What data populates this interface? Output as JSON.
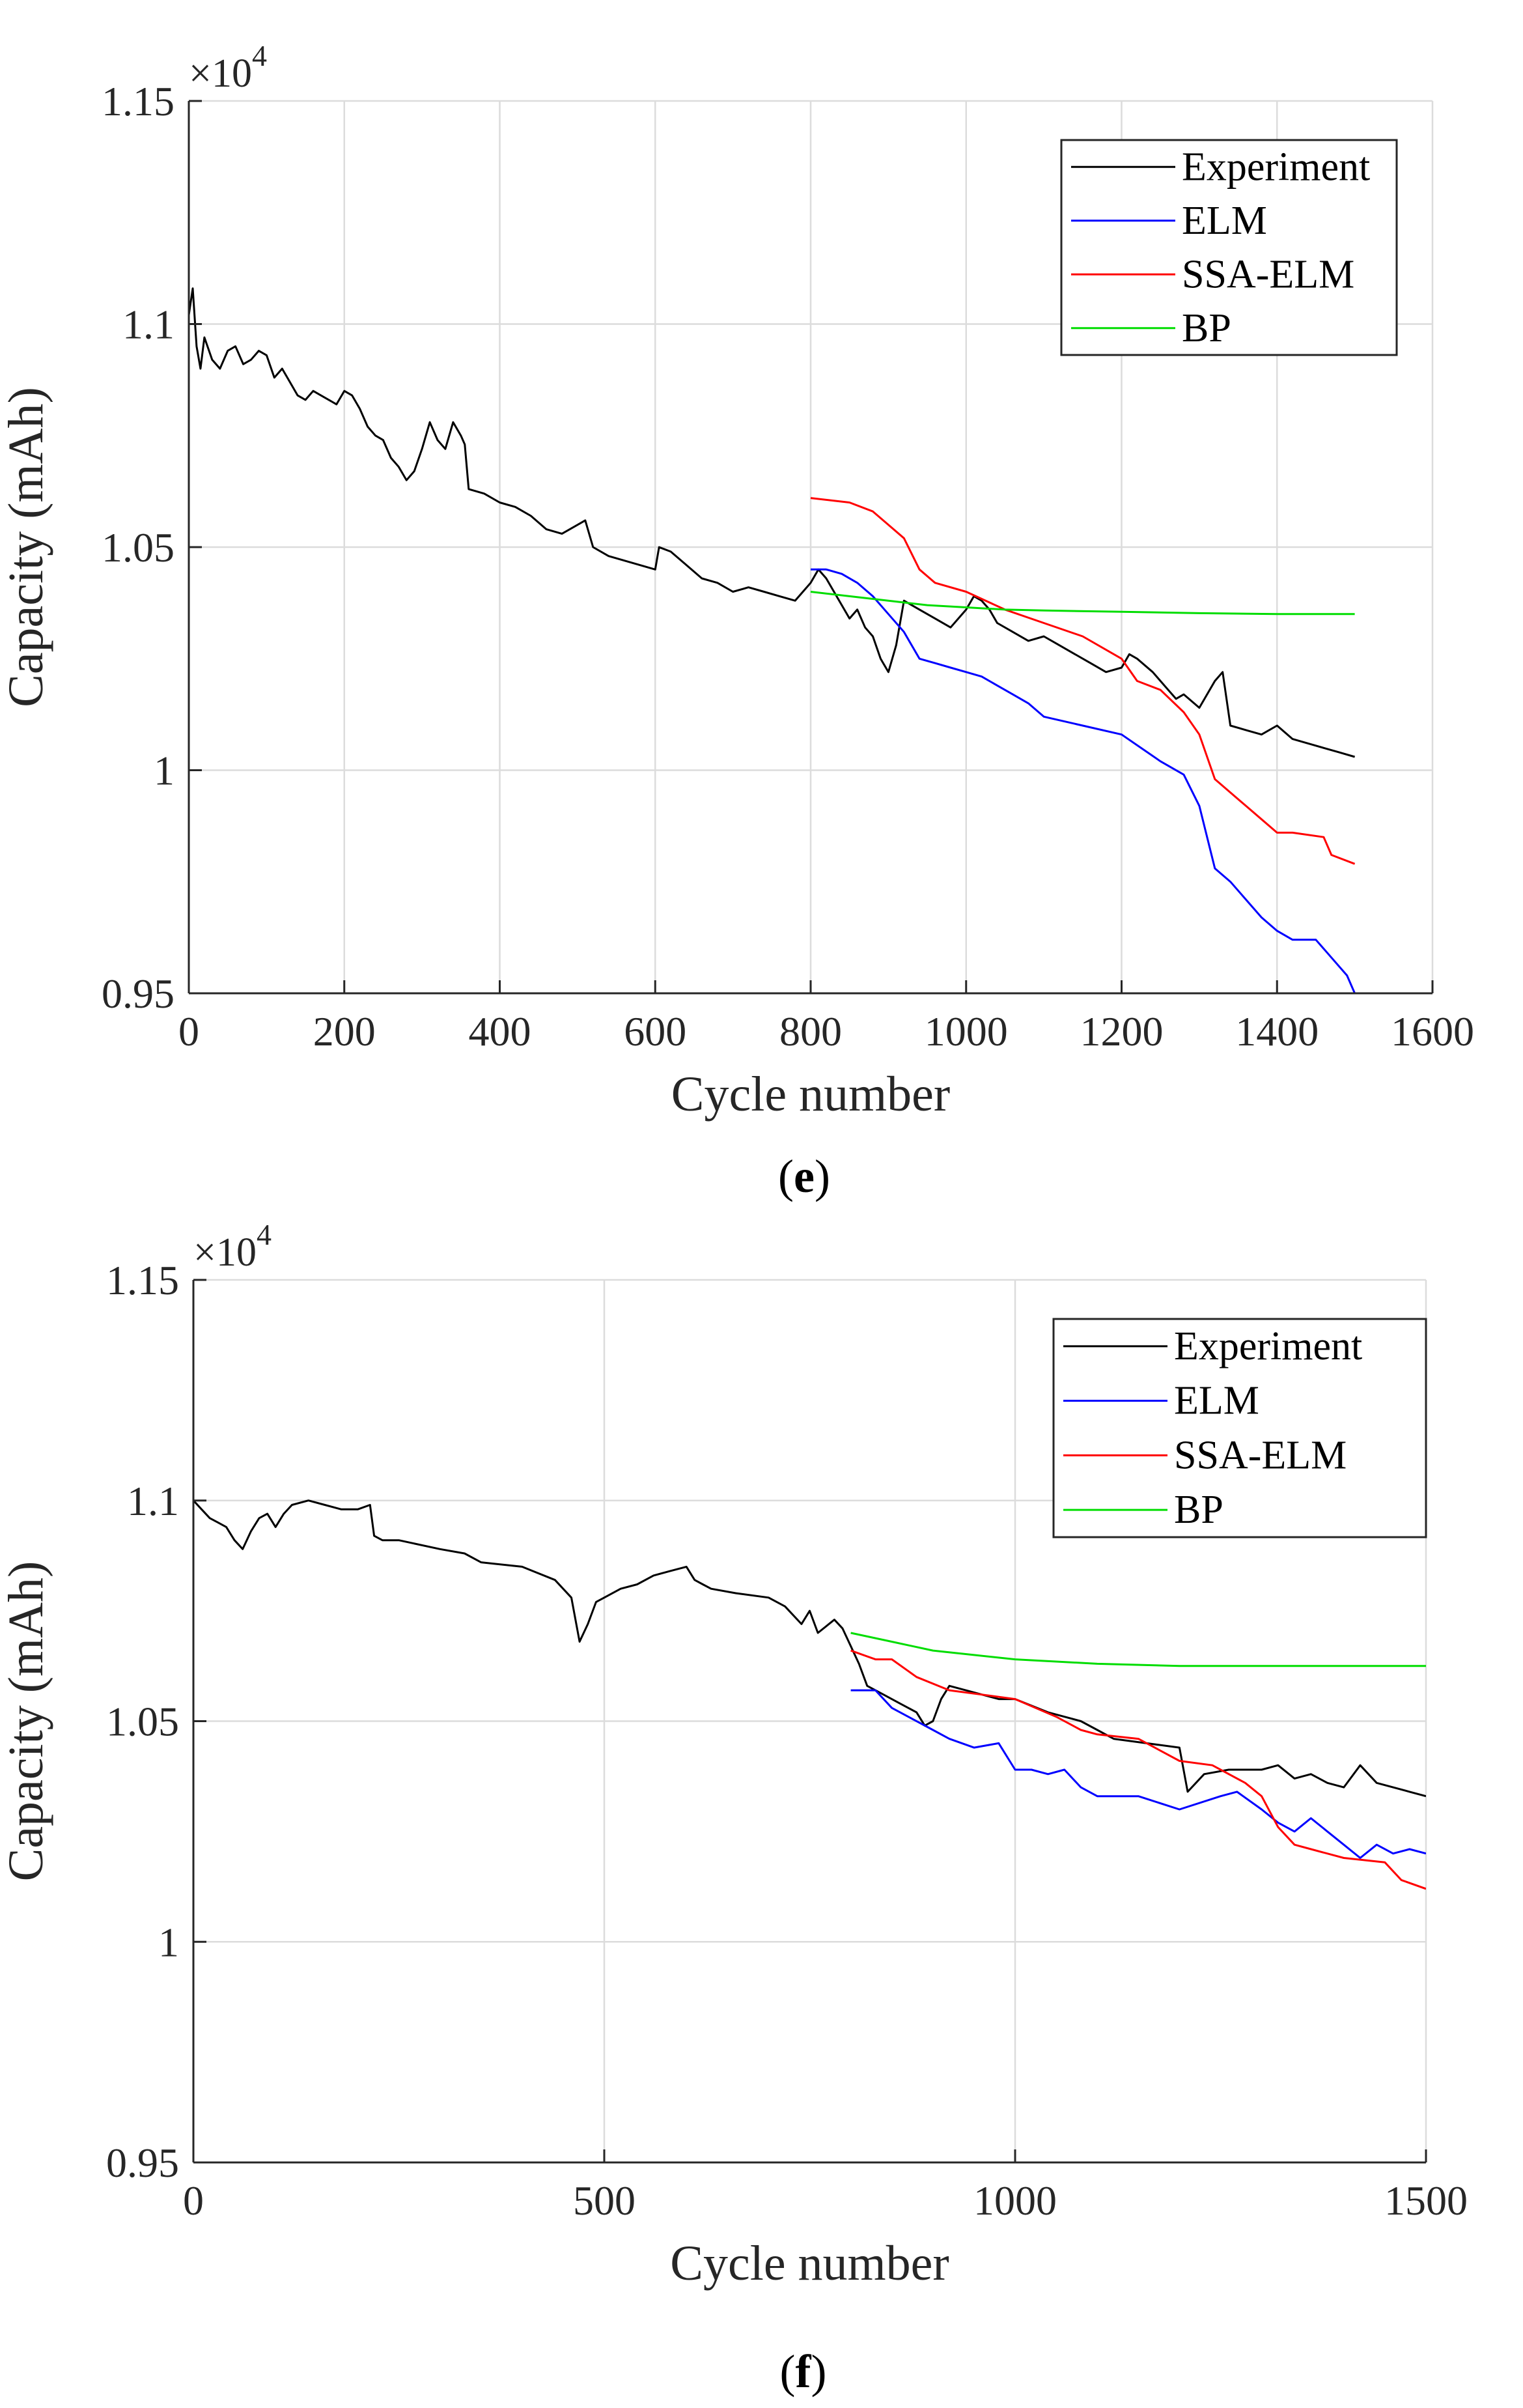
{
  "chart_data": [
    {
      "type": "line",
      "panel_label": "e",
      "xlabel": "Cycle number",
      "ylabel": "Capacity (mAh)",
      "exponent_label": "×10",
      "exponent_power": "4",
      "xlim": [
        0,
        1600
      ],
      "ylim": [
        0.95,
        1.15
      ],
      "xticks": [
        0,
        200,
        400,
        600,
        800,
        1000,
        1200,
        1400,
        1600
      ],
      "xtick_labels": [
        "0",
        "200",
        "400",
        "600",
        "800",
        "1000",
        "1200",
        "1400",
        "1600"
      ],
      "yticks": [
        0.95,
        1.0,
        1.05,
        1.1,
        1.15
      ],
      "ytick_labels": [
        "0.95",
        "1",
        "1.05",
        "1.1",
        "1.15"
      ],
      "grid": true,
      "legend_position": "top-right",
      "series": [
        {
          "name": "Experiment",
          "color": "#000000",
          "x": [
            0,
            5,
            10,
            15,
            20,
            30,
            40,
            50,
            60,
            70,
            80,
            90,
            100,
            110,
            120,
            130,
            140,
            150,
            160,
            170,
            180,
            190,
            200,
            210,
            220,
            230,
            240,
            250,
            260,
            270,
            280,
            290,
            300,
            310,
            320,
            330,
            340,
            350,
            355,
            360,
            380,
            400,
            420,
            440,
            460,
            480,
            500,
            510,
            520,
            540,
            560,
            580,
            600,
            605,
            620,
            640,
            660,
            680,
            700,
            720,
            740,
            760,
            780,
            790,
            800,
            810,
            820,
            830,
            840,
            850,
            860,
            870,
            880,
            890,
            900,
            910,
            920,
            930,
            940,
            960,
            980,
            1000,
            1010,
            1020,
            1030,
            1040,
            1060,
            1080,
            1100,
            1120,
            1140,
            1160,
            1180,
            1200,
            1210,
            1220,
            1240,
            1260,
            1270,
            1280,
            1300,
            1320,
            1330,
            1340,
            1360,
            1380,
            1400,
            1420,
            1440,
            1460,
            1480,
            1500
          ],
          "y": [
            1.102,
            1.108,
            1.095,
            1.09,
            1.097,
            1.092,
            1.09,
            1.094,
            1.095,
            1.091,
            1.092,
            1.094,
            1.093,
            1.088,
            1.09,
            1.087,
            1.084,
            1.083,
            1.085,
            1.084,
            1.083,
            1.082,
            1.085,
            1.084,
            1.081,
            1.077,
            1.075,
            1.074,
            1.07,
            1.068,
            1.065,
            1.067,
            1.072,
            1.078,
            1.074,
            1.072,
            1.078,
            1.075,
            1.073,
            1.063,
            1.062,
            1.06,
            1.059,
            1.057,
            1.054,
            1.053,
            1.055,
            1.056,
            1.05,
            1.048,
            1.047,
            1.046,
            1.045,
            1.05,
            1.049,
            1.046,
            1.043,
            1.042,
            1.04,
            1.041,
            1.04,
            1.039,
            1.038,
            1.04,
            1.042,
            1.045,
            1.043,
            1.04,
            1.037,
            1.034,
            1.036,
            1.032,
            1.03,
            1.025,
            1.022,
            1.028,
            1.038,
            1.037,
            1.036,
            1.034,
            1.032,
            1.036,
            1.039,
            1.038,
            1.036,
            1.033,
            1.031,
            1.029,
            1.03,
            1.028,
            1.026,
            1.024,
            1.022,
            1.023,
            1.026,
            1.025,
            1.022,
            1.018,
            1.016,
            1.017,
            1.014,
            1.02,
            1.022,
            1.01,
            1.009,
            1.008,
            1.01,
            1.007,
            1.006,
            1.005,
            1.004,
            1.003
          ]
        },
        {
          "name": "ELM",
          "color": "#0000ff",
          "x": [
            800,
            820,
            840,
            860,
            880,
            900,
            920,
            940,
            960,
            980,
            1000,
            1020,
            1040,
            1060,
            1080,
            1100,
            1150,
            1200,
            1250,
            1280,
            1300,
            1320,
            1340,
            1360,
            1380,
            1400,
            1420,
            1450,
            1470,
            1490,
            1500
          ],
          "y": [
            1.045,
            1.045,
            1.044,
            1.042,
            1.039,
            1.035,
            1.031,
            1.025,
            1.024,
            1.023,
            1.022,
            1.021,
            1.019,
            1.017,
            1.015,
            1.012,
            1.01,
            1.008,
            1.002,
            0.999,
            0.992,
            0.978,
            0.975,
            0.971,
            0.967,
            0.964,
            0.962,
            0.962,
            0.958,
            0.954,
            0.95
          ]
        },
        {
          "name": "SSA-ELM",
          "color": "#ff0000",
          "x": [
            800,
            850,
            880,
            900,
            920,
            940,
            960,
            1000,
            1050,
            1100,
            1150,
            1200,
            1220,
            1250,
            1280,
            1300,
            1320,
            1340,
            1360,
            1380,
            1400,
            1420,
            1460,
            1470,
            1500
          ],
          "y": [
            1.061,
            1.06,
            1.058,
            1.055,
            1.052,
            1.045,
            1.042,
            1.04,
            1.036,
            1.033,
            1.03,
            1.025,
            1.02,
            1.018,
            1.013,
            1.008,
            0.998,
            0.995,
            0.992,
            0.989,
            0.986,
            0.986,
            0.985,
            0.981,
            0.979
          ]
        },
        {
          "name": "BP",
          "color": "#00dd00",
          "x": [
            800,
            850,
            900,
            950,
            1000,
            1050,
            1100,
            1200,
            1300,
            1400,
            1500
          ],
          "y": [
            1.04,
            1.039,
            1.038,
            1.037,
            1.0365,
            1.036,
            1.0358,
            1.0355,
            1.0352,
            1.035,
            1.035
          ]
        }
      ]
    },
    {
      "type": "line",
      "panel_label": "f",
      "xlabel": "Cycle number",
      "ylabel": "Capacity (mAh)",
      "exponent_label": "×10",
      "exponent_power": "4",
      "xlim": [
        0,
        1500
      ],
      "ylim": [
        0.95,
        1.15
      ],
      "xticks": [
        0,
        500,
        1000,
        1500
      ],
      "xtick_labels": [
        "0",
        "500",
        "1000",
        "1500"
      ],
      "yticks": [
        0.95,
        1.0,
        1.05,
        1.1,
        1.15
      ],
      "ytick_labels": [
        "0.95",
        "1",
        "1.05",
        "1.1",
        "1.15"
      ],
      "grid": true,
      "legend_position": "top-right",
      "series": [
        {
          "name": "Experiment",
          "color": "#000000",
          "x": [
            0,
            10,
            20,
            30,
            40,
            50,
            60,
            70,
            80,
            90,
            100,
            110,
            120,
            140,
            160,
            180,
            200,
            215,
            220,
            230,
            250,
            300,
            330,
            350,
            400,
            440,
            460,
            470,
            480,
            490,
            500,
            520,
            540,
            560,
            580,
            600,
            610,
            620,
            630,
            660,
            700,
            720,
            740,
            750,
            760,
            780,
            790,
            800,
            810,
            820,
            830,
            840,
            860,
            880,
            890,
            900,
            910,
            920,
            940,
            960,
            980,
            1000,
            1040,
            1080,
            1100,
            1120,
            1160,
            1200,
            1210,
            1230,
            1260,
            1300,
            1320,
            1340,
            1360,
            1380,
            1400,
            1420,
            1440,
            1460,
            1480,
            1500
          ],
          "y": [
            1.1,
            1.098,
            1.096,
            1.095,
            1.094,
            1.091,
            1.089,
            1.093,
            1.096,
            1.097,
            1.094,
            1.097,
            1.099,
            1.1,
            1.099,
            1.098,
            1.098,
            1.099,
            1.092,
            1.091,
            1.091,
            1.089,
            1.088,
            1.086,
            1.085,
            1.082,
            1.078,
            1.068,
            1.072,
            1.077,
            1.078,
            1.08,
            1.081,
            1.083,
            1.084,
            1.085,
            1.082,
            1.081,
            1.08,
            1.079,
            1.078,
            1.076,
            1.072,
            1.075,
            1.07,
            1.073,
            1.071,
            1.067,
            1.063,
            1.058,
            1.057,
            1.056,
            1.054,
            1.052,
            1.049,
            1.05,
            1.055,
            1.058,
            1.057,
            1.056,
            1.055,
            1.055,
            1.052,
            1.05,
            1.048,
            1.046,
            1.045,
            1.044,
            1.034,
            1.038,
            1.039,
            1.039,
            1.04,
            1.037,
            1.038,
            1.036,
            1.035,
            1.04,
            1.036,
            1.035,
            1.034,
            1.033
          ]
        },
        {
          "name": "ELM",
          "color": "#0000ff",
          "x": [
            800,
            830,
            850,
            870,
            900,
            920,
            950,
            980,
            1000,
            1020,
            1040,
            1060,
            1080,
            1100,
            1150,
            1200,
            1250,
            1270,
            1300,
            1320,
            1340,
            1360,
            1380,
            1400,
            1420,
            1440,
            1460,
            1480,
            1500
          ],
          "y": [
            1.057,
            1.057,
            1.053,
            1.051,
            1.048,
            1.046,
            1.044,
            1.045,
            1.039,
            1.039,
            1.038,
            1.039,
            1.035,
            1.033,
            1.033,
            1.03,
            1.033,
            1.034,
            1.03,
            1.027,
            1.025,
            1.028,
            1.025,
            1.022,
            1.019,
            1.022,
            1.02,
            1.021,
            1.02
          ]
        },
        {
          "name": "SSA-ELM",
          "color": "#ff0000",
          "x": [
            800,
            830,
            850,
            880,
            920,
            960,
            1000,
            1050,
            1080,
            1100,
            1150,
            1200,
            1240,
            1280,
            1300,
            1320,
            1340,
            1360,
            1400,
            1450,
            1470,
            1500
          ],
          "y": [
            1.066,
            1.064,
            1.064,
            1.06,
            1.057,
            1.056,
            1.055,
            1.051,
            1.048,
            1.047,
            1.046,
            1.041,
            1.04,
            1.036,
            1.033,
            1.026,
            1.022,
            1.021,
            1.019,
            1.018,
            1.014,
            1.012
          ]
        },
        {
          "name": "BP",
          "color": "#00dd00",
          "x": [
            800,
            850,
            900,
            950,
            1000,
            1050,
            1100,
            1200,
            1300,
            1400,
            1500
          ],
          "y": [
            1.07,
            1.068,
            1.066,
            1.065,
            1.064,
            1.0635,
            1.063,
            1.0625,
            1.0625,
            1.0625,
            1.0625
          ]
        }
      ]
    }
  ]
}
